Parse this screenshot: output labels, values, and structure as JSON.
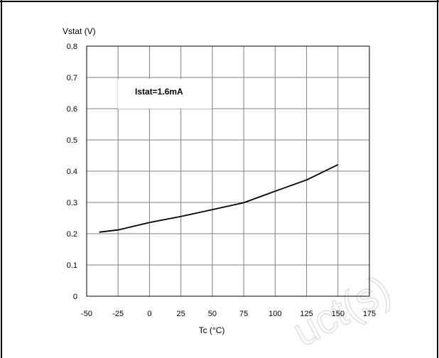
{
  "chart_data": {
    "type": "line",
    "ylabel": "Vstat (V)",
    "xlabel": "Tc (°C)",
    "xlim": [
      -50,
      175
    ],
    "ylim": [
      0,
      0.8
    ],
    "xticks": [
      -50,
      -25,
      0,
      25,
      50,
      75,
      100,
      125,
      150,
      175
    ],
    "yticks": [
      0,
      0.1,
      0.2,
      0.3,
      0.4,
      0.5,
      0.6,
      0.7,
      0.8
    ],
    "xtick_labels": [
      "-50",
      "-25",
      "0",
      "25",
      "50",
      "75",
      "100",
      "125",
      "150",
      "175"
    ],
    "ytick_labels": [
      "0",
      "0.1",
      "0.2",
      "0.3",
      "0.4",
      "0.5",
      "0.6",
      "0.7",
      "0.8"
    ],
    "grid": true,
    "annotation": "Istat=1.6mA",
    "series": [
      {
        "x": [
          -40,
          -25,
          0,
          25,
          50,
          75,
          100,
          125,
          150
        ],
        "y": [
          0.205,
          0.212,
          0.236,
          0.255,
          0.277,
          0.299,
          0.336,
          0.372,
          0.421
        ]
      }
    ]
  },
  "watermark": "uct(s)",
  "colors": {
    "line": "#000000",
    "grid": "#808080",
    "frame": "#000000",
    "background": "#ffffff",
    "watermark": "#d9d9d9"
  }
}
